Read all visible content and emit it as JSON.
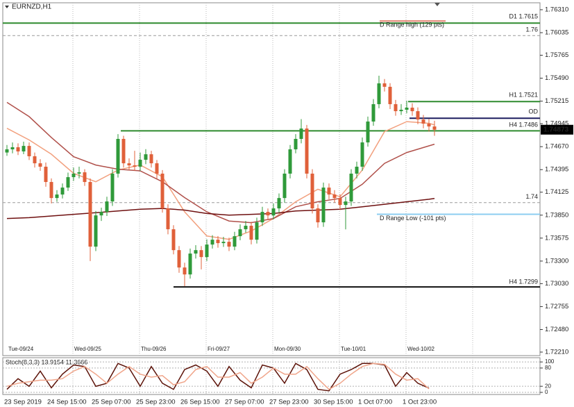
{
  "chart_data": [
    {
      "type": "candlestick",
      "title": "EURNZD,H1",
      "up_color": "#2f9a3a",
      "down_color": "#e0603a",
      "xlim": [
        -0.75,
        96
      ],
      "ylim": [
        1.72168,
        1.76393
      ],
      "grid": false,
      "yticks": [
        {
          "value": 1.7631,
          "label": "1.76310"
        },
        1.76035,
        1.75765,
        {
          "value": 1.7549,
          "label": "1.75490"
        },
        1.75215,
        1.74945,
        {
          "value": 1.7467,
          "label": "1.74670"
        },
        1.74395,
        1.74125,
        {
          "value": 1.7385,
          "label": "1.73850"
        },
        1.73575,
        {
          "value": 1.733,
          "label": "1.73300"
        },
        {
          "value": 1.7303,
          "label": "1.73030"
        },
        1.72755,
        {
          "value": 1.7248,
          "label": "1.72480"
        },
        {
          "value": 1.7221,
          "label": "1.72210"
        }
      ],
      "day_labels": [
        "Tue-09/24",
        "Wed-09/25",
        "Thu-09/26",
        "Fri-09/27",
        "Mon-09/30",
        "Tue-10/01",
        "Wed-10/02"
      ],
      "candles": [
        [
          1.746,
          1.7469,
          1.7456,
          1.74638
        ],
        [
          1.74638,
          1.7472,
          1.7459,
          1.74663
        ],
        [
          1.74663,
          1.7471,
          1.7457,
          1.74613
        ],
        [
          1.74613,
          1.7473,
          1.7458,
          1.74679
        ],
        [
          1.74679,
          1.7472,
          1.7451,
          1.74555
        ],
        [
          1.74555,
          1.746,
          1.7442,
          1.74471
        ],
        [
          1.74471,
          1.7452,
          1.7438,
          1.7443
        ],
        [
          1.7443,
          1.7448,
          1.7419,
          1.74247
        ],
        [
          1.74247,
          1.7429,
          1.7399,
          1.74055
        ],
        [
          1.74055,
          1.7415,
          1.7401,
          1.74097
        ],
        [
          1.74097,
          1.7423,
          1.7405,
          1.7418
        ],
        [
          1.7418,
          1.7436,
          1.7414,
          1.74305
        ],
        [
          1.74305,
          1.7442,
          1.7426,
          1.74347
        ],
        [
          1.74347,
          1.7443,
          1.7429,
          1.74363
        ],
        [
          1.74363,
          1.744,
          1.742,
          1.74247
        ],
        [
          1.74247,
          1.7429,
          1.733,
          1.73473
        ],
        [
          1.73473,
          1.739,
          1.7342,
          1.73847
        ],
        [
          1.73847,
          1.7394,
          1.7378,
          1.73889
        ],
        [
          1.73889,
          1.7407,
          1.7384,
          1.74014
        ],
        [
          1.74014,
          1.744,
          1.7396,
          1.74347
        ],
        [
          1.74347,
          1.7482,
          1.743,
          1.74763
        ],
        [
          1.74763,
          1.748,
          1.7442,
          1.74471
        ],
        [
          1.74471,
          1.7453,
          1.7439,
          1.74446
        ],
        [
          1.74446,
          1.7462,
          1.7438,
          1.7443
        ],
        [
          1.7443,
          1.746,
          1.7438,
          1.74513
        ],
        [
          1.74513,
          1.7464,
          1.7446,
          1.74579
        ],
        [
          1.74579,
          1.7462,
          1.7442,
          1.74471
        ],
        [
          1.74471,
          1.7451,
          1.7429,
          1.74347
        ],
        [
          1.74347,
          1.7439,
          1.7388,
          1.73931
        ],
        [
          1.73931,
          1.7398,
          1.7362,
          1.73681
        ],
        [
          1.73681,
          1.7373,
          1.7338,
          1.73431
        ],
        [
          1.73431,
          1.7348,
          1.7316,
          1.73223
        ],
        [
          1.73223,
          1.7328,
          1.73,
          1.7314
        ],
        [
          1.7314,
          1.7345,
          1.7309,
          1.7339
        ],
        [
          1.7339,
          1.7349,
          1.7333,
          1.73431
        ],
        [
          1.73431,
          1.7348,
          1.732,
          1.73348
        ],
        [
          1.73348,
          1.7356,
          1.733,
          1.73498
        ],
        [
          1.73498,
          1.7361,
          1.7345,
          1.73556
        ],
        [
          1.73556,
          1.736,
          1.7346,
          1.73515
        ],
        [
          1.73515,
          1.7359,
          1.7347,
          1.73531
        ],
        [
          1.73531,
          1.7358,
          1.7342,
          1.73473
        ],
        [
          1.73473,
          1.7365,
          1.7343,
          1.73598
        ],
        [
          1.73598,
          1.7374,
          1.7355,
          1.73681
        ],
        [
          1.73681,
          1.7378,
          1.7364,
          1.73723
        ],
        [
          1.73723,
          1.7377,
          1.735,
          1.73556
        ],
        [
          1.73556,
          1.7382,
          1.7351,
          1.73764
        ],
        [
          1.73764,
          1.7395,
          1.7372,
          1.73889
        ],
        [
          1.73889,
          1.7393,
          1.7379,
          1.73847
        ],
        [
          1.73847,
          1.7399,
          1.738,
          1.73931
        ],
        [
          1.73931,
          1.7411,
          1.7388,
          1.74055
        ],
        [
          1.74055,
          1.744,
          1.74,
          1.74347
        ],
        [
          1.74347,
          1.7469,
          1.7429,
          1.74638
        ],
        [
          1.74638,
          1.7482,
          1.7459,
          1.74763
        ],
        [
          1.74763,
          1.75,
          1.7471,
          1.74887
        ],
        [
          1.74887,
          1.7493,
          1.7429,
          1.74347
        ],
        [
          1.74347,
          1.744,
          1.7387,
          1.73931
        ],
        [
          1.73931,
          1.7398,
          1.737,
          1.73764
        ],
        [
          1.73764,
          1.7424,
          1.7371,
          1.7418
        ],
        [
          1.7418,
          1.7423,
          1.7404,
          1.74097
        ],
        [
          1.74097,
          1.7415,
          1.74,
          1.74055
        ],
        [
          1.74055,
          1.741,
          1.7391,
          1.73972
        ],
        [
          1.73972,
          1.7407,
          1.7368,
          1.74014
        ],
        [
          1.74014,
          1.744,
          1.7396,
          1.74347
        ],
        [
          1.74347,
          1.7449,
          1.7429,
          1.7443
        ],
        [
          1.7443,
          1.7478,
          1.7438,
          1.74721
        ],
        [
          1.74721,
          1.7503,
          1.7467,
          1.74971
        ],
        [
          1.74971,
          1.7524,
          1.7492,
          1.75179
        ],
        [
          1.75179,
          1.7552,
          1.7513,
          1.75428
        ],
        [
          1.75428,
          1.7548,
          1.7533,
          1.75387
        ],
        [
          1.75387,
          1.7543,
          1.7512,
          1.75179
        ],
        [
          1.75179,
          1.7523,
          1.7504,
          1.75095
        ],
        [
          1.75095,
          1.7518,
          1.7505,
          1.75112
        ],
        [
          1.75112,
          1.7522,
          1.7507,
          1.75137
        ],
        [
          1.75137,
          1.7519,
          1.7504,
          1.75095
        ],
        [
          1.75095,
          1.7514,
          1.7494,
          1.74995
        ],
        [
          1.74995,
          1.7505,
          1.7489,
          1.74946
        ],
        [
          1.74946,
          1.75,
          1.7485,
          1.74912
        ],
        [
          1.74912,
          1.7498,
          1.748,
          1.74873
        ]
      ],
      "x": [
        0,
        4,
        8,
        12,
        16,
        20,
        24,
        28,
        32,
        36,
        40,
        44,
        48,
        52,
        56,
        60,
        64,
        68,
        72,
        76,
        77
      ],
      "series": [
        {
          "color": "#f2a07e",
          "values": [
            1.7489,
            1.7475,
            1.7458,
            1.7435,
            1.7425,
            1.7439,
            1.7445,
            1.7431,
            1.7389,
            1.736,
            1.7356,
            1.7366,
            1.7381,
            1.7401,
            1.7416,
            1.7407,
            1.7439,
            1.7485,
            1.7497,
            1.7495,
            1.7493
          ]
        },
        {
          "color": "#b0504a",
          "values": [
            1.752,
            1.7503,
            1.7478,
            1.7455,
            1.7445,
            1.744,
            1.7438,
            1.7425,
            1.7406,
            1.7389,
            1.7378,
            1.7376,
            1.7381,
            1.7395,
            1.7401,
            1.7405,
            1.7422,
            1.7447,
            1.746,
            1.7468,
            1.747
          ]
        },
        {
          "color": "#6e0f0f",
          "values": [
            1.7381,
            1.7382,
            1.7384,
            1.7386,
            1.7388,
            1.739,
            1.7392,
            1.7393,
            1.7391,
            1.7387,
            1.7385,
            1.7386,
            1.7387,
            1.739,
            1.7391,
            1.7392,
            1.7395,
            1.7398,
            1.7401,
            1.7404,
            1.7405
          ]
        }
      ],
      "levels": [
        {
          "label": "D1 1.7615",
          "value": 1.7615,
          "color": "#2e8b2e",
          "style": "solid"
        },
        {
          "label": "D Range high (129 pts)",
          "value": 1.76175,
          "color": "#e0806e",
          "style": "solid"
        },
        {
          "label": "1.76",
          "value": 1.76,
          "color": "#9a9a9a",
          "style": "dashed"
        },
        {
          "label": "H1 1.7521",
          "value": 1.7521,
          "color": "#2e8b2e",
          "style": "solid"
        },
        {
          "label": "OD",
          "value": 1.7501,
          "color": "#1c1c5e",
          "style": "solid"
        },
        {
          "label": "H4 1.7486",
          "value": 1.7486,
          "color": "#2e8b2e",
          "style": "solid"
        },
        {
          "label": "1.74",
          "value": 1.74,
          "color": "#9a9a9a",
          "style": "dashed"
        },
        {
          "label": "D Range Low (-101 pts)",
          "value": 1.7386,
          "color": "#8ccdf0",
          "style": "solid"
        },
        {
          "label": "H4 1.7299",
          "value": 1.7299,
          "color": "#111111",
          "style": "solid"
        }
      ],
      "last_price": 1.74873
    },
    {
      "type": "line",
      "title": "Stoch(8,3,3) 13.9154 11.3666",
      "xlim": [
        -0.75,
        96
      ],
      "ylim": [
        -7,
        114
      ],
      "grid": true,
      "yticks": [
        100,
        80,
        20,
        0
      ],
      "x": [
        0,
        2,
        4,
        6,
        8,
        10,
        12,
        14,
        16,
        18,
        20,
        22,
        24,
        26,
        28,
        30,
        32,
        34,
        36,
        38,
        40,
        42,
        44,
        46,
        48,
        50,
        52,
        54,
        56,
        58,
        60,
        62,
        64,
        66,
        68,
        70,
        72,
        74,
        76
      ],
      "series": [
        {
          "color": "#5c1208",
          "values": [
            10,
            45,
            20,
            70,
            15,
            60,
            90,
            85,
            20,
            30,
            95,
            80,
            20,
            85,
            30,
            10,
            75,
            90,
            70,
            20,
            85,
            40,
            15,
            90,
            80,
            30,
            95,
            75,
            10,
            5,
            60,
            75,
            95,
            95,
            90,
            20,
            65,
            30,
            13.9
          ]
        },
        {
          "color": "#f0a58a",
          "values": [
            20,
            30,
            35,
            40,
            40,
            45,
            70,
            85,
            60,
            30,
            60,
            85,
            60,
            50,
            55,
            25,
            35,
            75,
            85,
            50,
            50,
            65,
            30,
            50,
            80,
            60,
            60,
            85,
            45,
            10,
            30,
            60,
            85,
            95,
            92,
            60,
            40,
            45,
            11.4
          ]
        }
      ]
    }
  ],
  "time_axis": [
    "23 Sep 2019",
    "24 Sep 15:00",
    "25 Sep 07:00",
    "25 Sep 23:00",
    "26 Sep 15:00",
    "27 Sep 07:00",
    "27 Sep 23:00",
    "30 Sep 15:00",
    "1 Oct 07:00",
    "1 Oct 23:00"
  ]
}
